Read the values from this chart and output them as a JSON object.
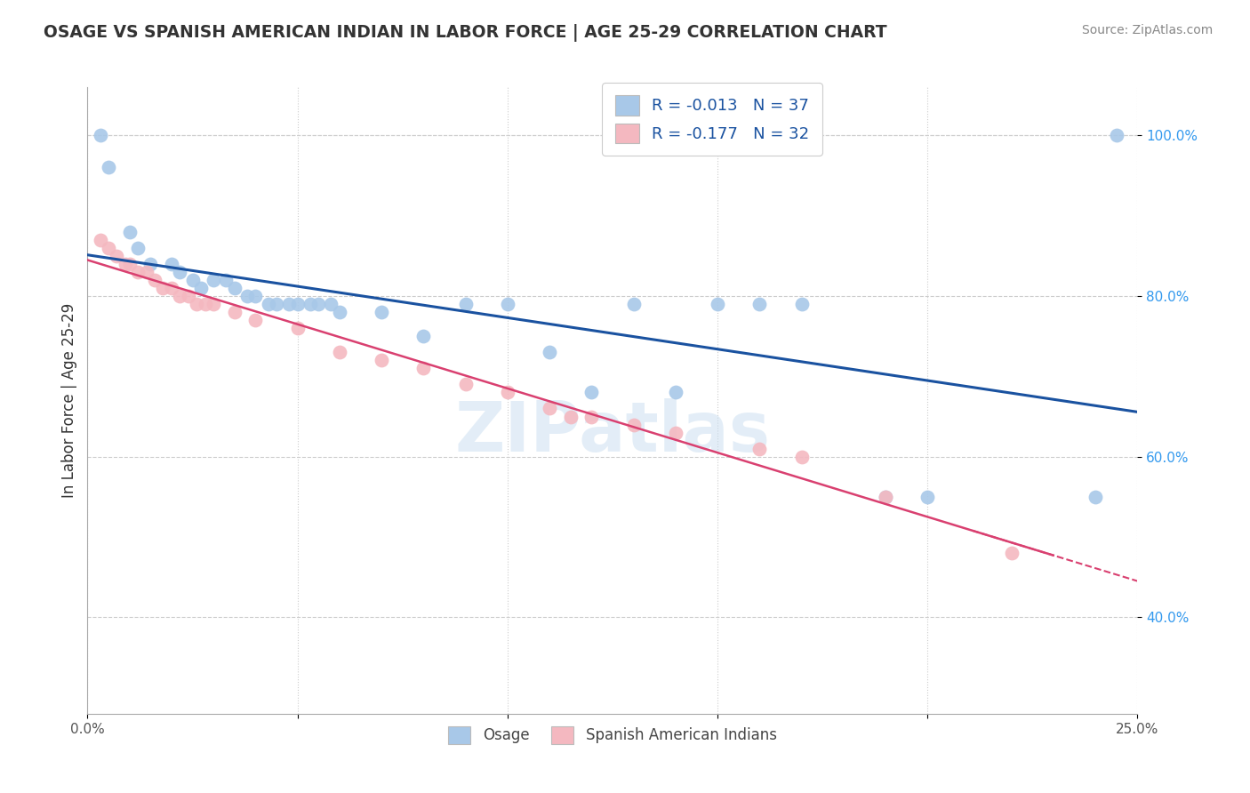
{
  "title": "OSAGE VS SPANISH AMERICAN INDIAN IN LABOR FORCE | AGE 25-29 CORRELATION CHART",
  "source": "Source: ZipAtlas.com",
  "ylabel": "In Labor Force | Age 25-29",
  "xmin": 0.0,
  "xmax": 0.25,
  "ymin": 0.28,
  "ymax": 1.06,
  "x_ticks": [
    0.0,
    0.05,
    0.1,
    0.15,
    0.2,
    0.25
  ],
  "x_tick_labels": [
    "0.0%",
    "",
    "",
    "",
    "",
    "25.0%"
  ],
  "y_ticks": [
    0.4,
    0.6,
    0.8,
    1.0
  ],
  "y_tick_labels": [
    "40.0%",
    "60.0%",
    "80.0%",
    "100.0%"
  ],
  "legend_blue_label": "Osage",
  "legend_pink_label": "Spanish American Indians",
  "R_blue": -0.013,
  "N_blue": 37,
  "R_pink": -0.177,
  "N_pink": 32,
  "blue_color": "#a8c8e8",
  "pink_color": "#f4b8c0",
  "blue_line_color": "#1a52a0",
  "pink_line_color": "#d94070",
  "watermark_text": "ZIPatlas",
  "osage_x": [
    0.003,
    0.005,
    0.01,
    0.012,
    0.015,
    0.02,
    0.022,
    0.025,
    0.027,
    0.03,
    0.033,
    0.035,
    0.038,
    0.04,
    0.043,
    0.045,
    0.048,
    0.05,
    0.053,
    0.055,
    0.058,
    0.06,
    0.07,
    0.08,
    0.09,
    0.1,
    0.11,
    0.12,
    0.13,
    0.14,
    0.15,
    0.16,
    0.17,
    0.19,
    0.2,
    0.24,
    0.245
  ],
  "osage_y": [
    1.0,
    0.96,
    0.88,
    0.86,
    0.84,
    0.84,
    0.83,
    0.82,
    0.81,
    0.82,
    0.82,
    0.81,
    0.8,
    0.8,
    0.79,
    0.79,
    0.79,
    0.79,
    0.79,
    0.79,
    0.79,
    0.78,
    0.78,
    0.75,
    0.79,
    0.79,
    0.73,
    0.68,
    0.79,
    0.68,
    0.79,
    0.79,
    0.79,
    0.55,
    0.55,
    0.55,
    1.0
  ],
  "spanish_x": [
    0.003,
    0.005,
    0.007,
    0.009,
    0.01,
    0.012,
    0.014,
    0.016,
    0.018,
    0.02,
    0.022,
    0.024,
    0.026,
    0.028,
    0.03,
    0.035,
    0.04,
    0.05,
    0.06,
    0.07,
    0.08,
    0.09,
    0.1,
    0.11,
    0.115,
    0.12,
    0.13,
    0.14,
    0.16,
    0.17,
    0.19,
    0.22
  ],
  "spanish_y": [
    0.87,
    0.86,
    0.85,
    0.84,
    0.84,
    0.83,
    0.83,
    0.82,
    0.81,
    0.81,
    0.8,
    0.8,
    0.79,
    0.79,
    0.79,
    0.78,
    0.77,
    0.76,
    0.73,
    0.72,
    0.71,
    0.69,
    0.68,
    0.66,
    0.65,
    0.65,
    0.64,
    0.63,
    0.61,
    0.6,
    0.55,
    0.48
  ]
}
